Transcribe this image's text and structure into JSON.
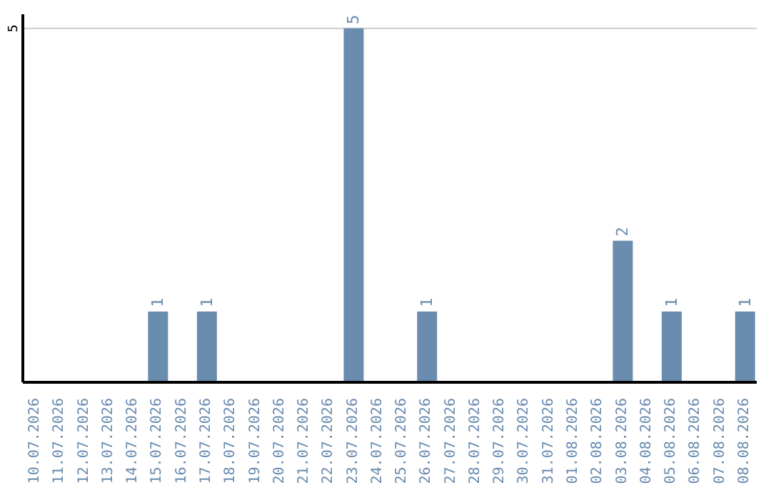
{
  "chart_data": {
    "type": "bar",
    "categories": [
      "10.07.2026",
      "11.07.2026",
      "12.07.2026",
      "13.07.2026",
      "14.07.2026",
      "15.07.2026",
      "16.07.2026",
      "17.07.2026",
      "18.07.2026",
      "19.07.2026",
      "20.07.2026",
      "21.07.2026",
      "22.07.2026",
      "23.07.2026",
      "24.07.2026",
      "25.07.2026",
      "26.07.2026",
      "27.07.2026",
      "28.07.2026",
      "29.07.2026",
      "30.07.2026",
      "31.07.2026",
      "01.08.2026",
      "02.08.2026",
      "03.08.2026",
      "04.08.2026",
      "05.08.2026",
      "06.08.2026",
      "07.08.2026",
      "08.08.2026"
    ],
    "values": [
      0,
      0,
      0,
      0,
      0,
      1,
      0,
      1,
      0,
      0,
      0,
      0,
      0,
      5,
      0,
      0,
      1,
      0,
      0,
      0,
      0,
      0,
      0,
      0,
      2,
      0,
      1,
      0,
      0,
      1
    ],
    "value_labels": [
      null,
      null,
      null,
      null,
      null,
      "1",
      null,
      "1",
      null,
      null,
      null,
      null,
      null,
      "5",
      null,
      null,
      "1",
      null,
      null,
      null,
      null,
      null,
      null,
      null,
      "2",
      null,
      "1",
      null,
      null,
      "1"
    ],
    "color": "#6a8caf",
    "ylim": [
      0,
      5.2
    ],
    "yticks": [
      5
    ],
    "grid": "y"
  }
}
